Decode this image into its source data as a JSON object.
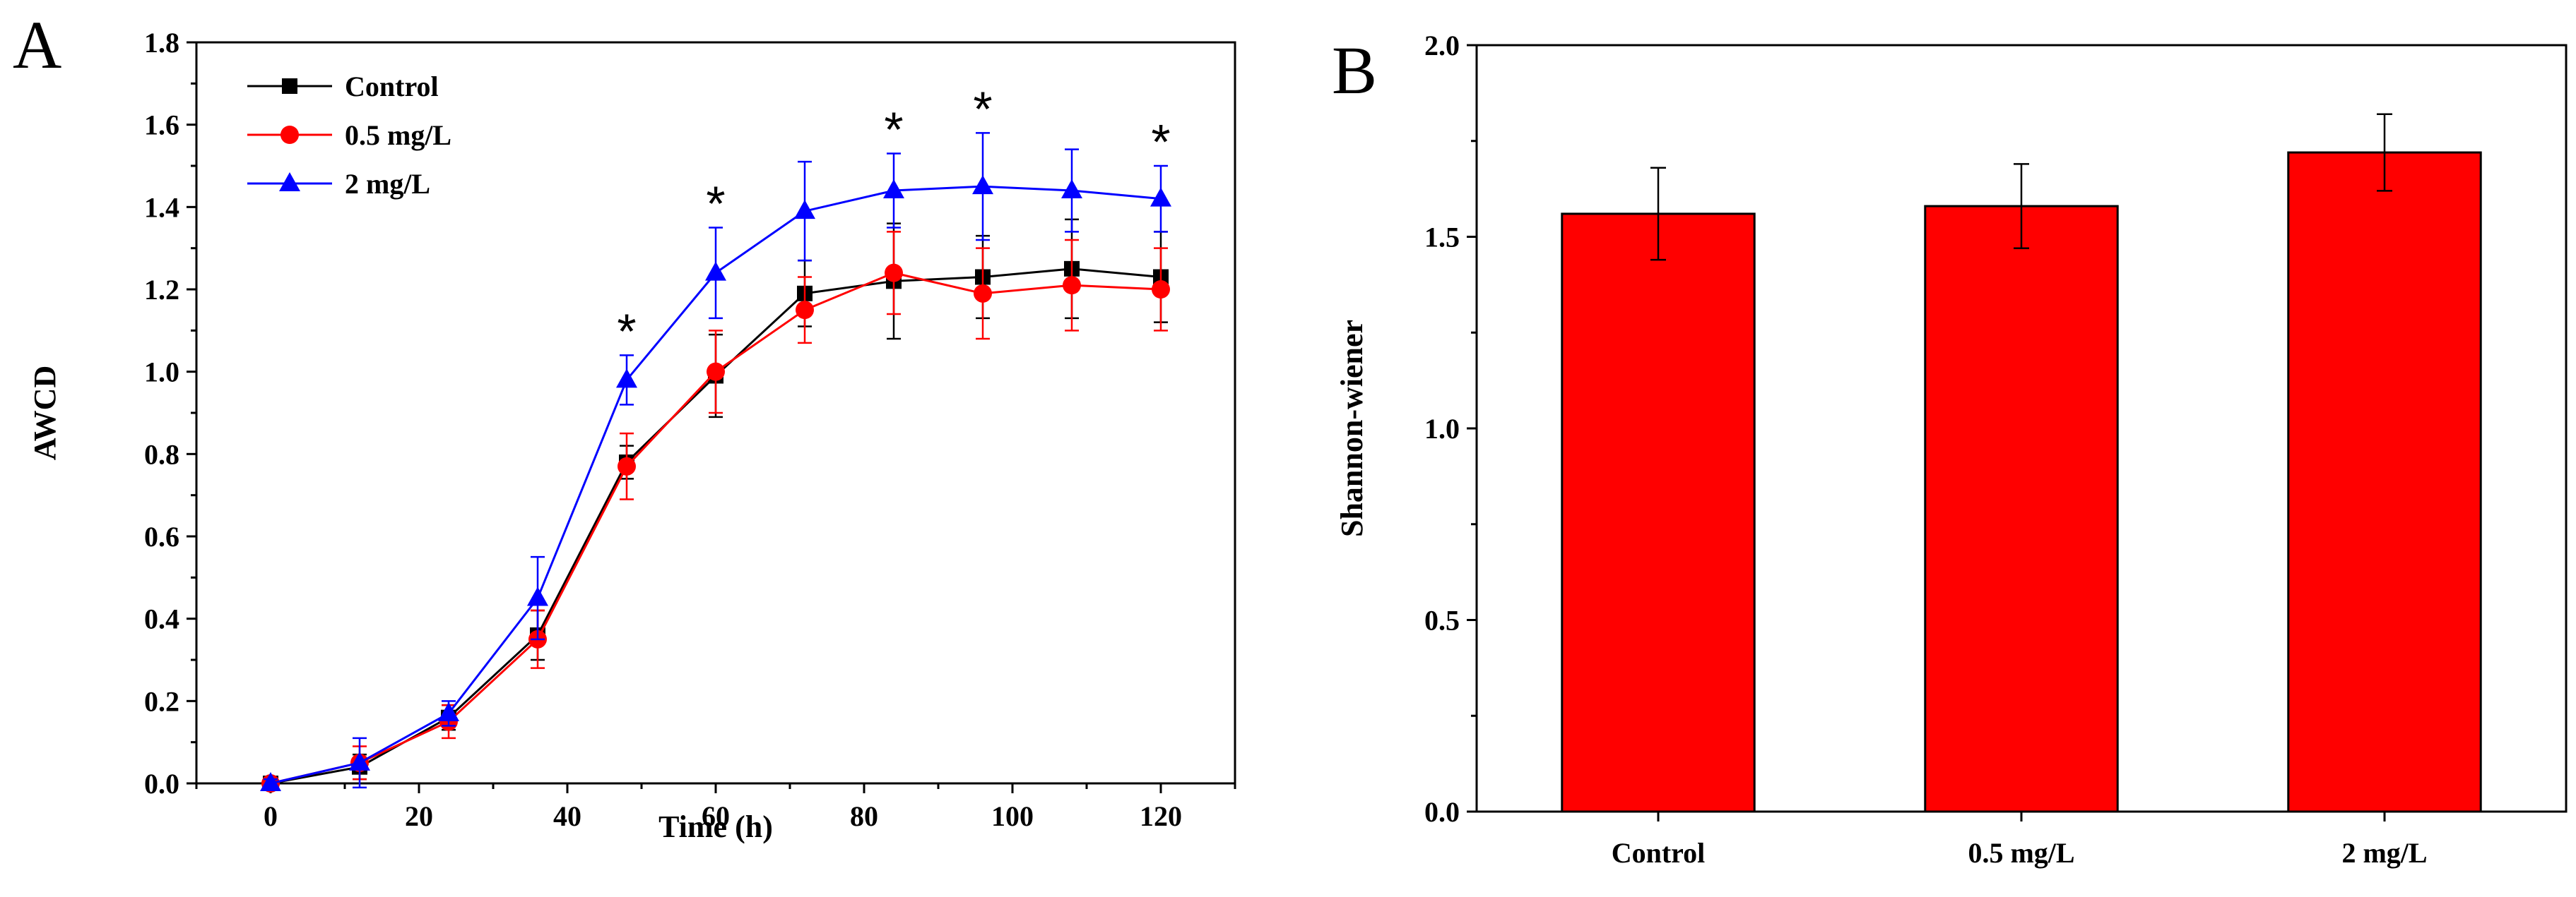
{
  "chart_data": [
    {
      "panel": "A",
      "type": "line",
      "xlabel": "Time (h)",
      "ylabel": "AWCD",
      "xlim": [
        -10,
        130
      ],
      "ylim": [
        0,
        1.8
      ],
      "xticks": [
        0,
        20,
        40,
        60,
        80,
        100,
        120
      ],
      "yticks": [
        0.0,
        0.2,
        0.4,
        0.6,
        0.8,
        1.0,
        1.2,
        1.4,
        1.6,
        1.8
      ],
      "x": [
        0,
        12,
        24,
        36,
        48,
        60,
        72,
        84,
        96,
        108,
        120
      ],
      "series": [
        {
          "name": "Control",
          "color": "#000000",
          "marker": "square",
          "values": [
            0.0,
            0.04,
            0.16,
            0.36,
            0.78,
            0.99,
            1.19,
            1.22,
            1.23,
            1.25,
            1.23
          ],
          "errors": [
            0.01,
            0.03,
            0.03,
            0.06,
            0.04,
            0.1,
            0.08,
            0.14,
            0.1,
            0.12,
            0.11
          ]
        },
        {
          "name": "0.5 mg/L",
          "color": "#ff0000",
          "marker": "circle",
          "values": [
            0.0,
            0.05,
            0.15,
            0.35,
            0.77,
            1.0,
            1.15,
            1.24,
            1.19,
            1.21,
            1.2
          ],
          "errors": [
            0.01,
            0.04,
            0.04,
            0.07,
            0.08,
            0.1,
            0.08,
            0.1,
            0.11,
            0.11,
            0.1
          ]
        },
        {
          "name": "2 mg/L",
          "color": "#0000ff",
          "marker": "triangle",
          "values": [
            0.0,
            0.05,
            0.17,
            0.45,
            0.98,
            1.24,
            1.39,
            1.44,
            1.45,
            1.44,
            1.42
          ],
          "errors": [
            0.01,
            0.06,
            0.03,
            0.1,
            0.06,
            0.11,
            0.12,
            0.09,
            0.13,
            0.1,
            0.08
          ]
        }
      ],
      "significance": {
        "symbol": "*",
        "x": [
          48,
          60,
          84,
          96,
          120
        ]
      },
      "legend_position": "top-left"
    },
    {
      "panel": "B",
      "type": "bar",
      "xlabel": "",
      "ylabel": "Shannon-wiener",
      "categories": [
        "Control",
        "0.5 mg/L",
        "2 mg/L"
      ],
      "values": [
        1.56,
        1.58,
        1.72
      ],
      "errors": [
        0.12,
        0.11,
        0.1
      ],
      "ylim": [
        0,
        2.0
      ],
      "yticks": [
        0.0,
        0.5,
        1.0,
        1.5,
        2.0
      ],
      "bar_color": "#ff0000"
    }
  ]
}
